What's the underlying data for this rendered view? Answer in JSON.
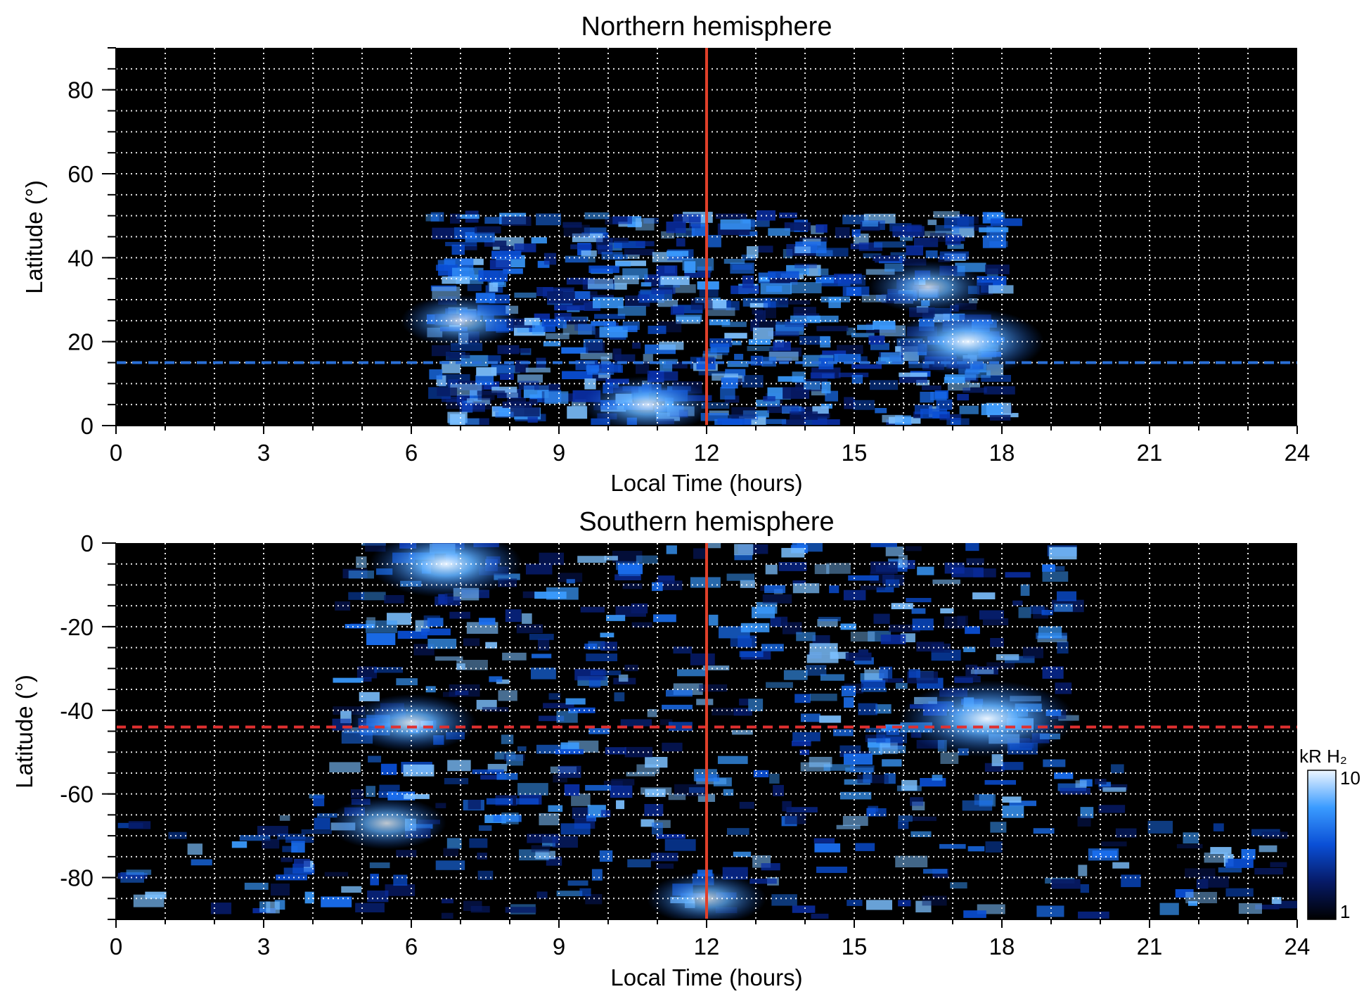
{
  "figure": {
    "colorbar": {
      "label": "kR H₂",
      "min_label": "1",
      "max_label": "10",
      "scale": "log",
      "range": [
        1,
        10
      ]
    }
  },
  "chart_data": [
    {
      "type": "heatmap",
      "title": "Northern hemisphere",
      "xlabel": "Local Time (hours)",
      "ylabel": "Latitude (°)",
      "xlim": [
        0,
        24
      ],
      "ylim": [
        0,
        90
      ],
      "xticks": [
        "0",
        "3",
        "6",
        "9",
        "12",
        "15",
        "18",
        "21",
        "24"
      ],
      "yticks": [
        "0",
        "20",
        "40",
        "60",
        "80"
      ],
      "ytick_values": [
        0,
        20,
        40,
        60,
        80
      ],
      "grid": true,
      "colormap": "black-blue-white",
      "vertical_line": {
        "x": 12,
        "color": "#e0402a"
      },
      "reference_line": {
        "y": 15,
        "style": "dashed",
        "color": "#2a6fd6"
      },
      "emission_extent": {
        "lt_start": 6.4,
        "lt_end": 17.9,
        "max_latitude": 50
      },
      "bright_spots": [
        {
          "lt": 17.3,
          "lat": 20,
          "intensity": 8
        },
        {
          "lt": 7.0,
          "lat": 25,
          "intensity": 5
        },
        {
          "lt": 10.8,
          "lat": 5,
          "intensity": 6
        },
        {
          "lt": 16.5,
          "lat": 33,
          "intensity": 5
        }
      ]
    },
    {
      "type": "heatmap",
      "title": "Southern hemisphere",
      "xlabel": "Local Time (hours)",
      "ylabel": "Latitude (°)",
      "xlim": [
        0,
        24
      ],
      "ylim": [
        -90,
        0
      ],
      "xticks": [
        "0",
        "3",
        "6",
        "9",
        "12",
        "15",
        "18",
        "21",
        "24"
      ],
      "yticks": [
        "0",
        "-20",
        "-40",
        "-60",
        "-80"
      ],
      "ytick_values": [
        0,
        -20,
        -40,
        -60,
        -80
      ],
      "grid": true,
      "colormap": "black-blue-white",
      "vertical_line": {
        "x": 12,
        "color": "#e0402a"
      },
      "reference_line": {
        "y": -44,
        "style": "dashed",
        "color": "#e03030"
      },
      "emission_extent": {
        "lt_start": 4.4,
        "lt_end": 19.3,
        "max_latitude": -90
      },
      "bright_spots": [
        {
          "lt": 17.7,
          "lat": -42,
          "intensity": 10
        },
        {
          "lt": 6.7,
          "lat": -5,
          "intensity": 8
        },
        {
          "lt": 6.0,
          "lat": -43,
          "intensity": 6
        },
        {
          "lt": 5.5,
          "lat": -67,
          "intensity": 5
        },
        {
          "lt": 12.0,
          "lat": -85,
          "intensity": 5
        }
      ]
    }
  ]
}
